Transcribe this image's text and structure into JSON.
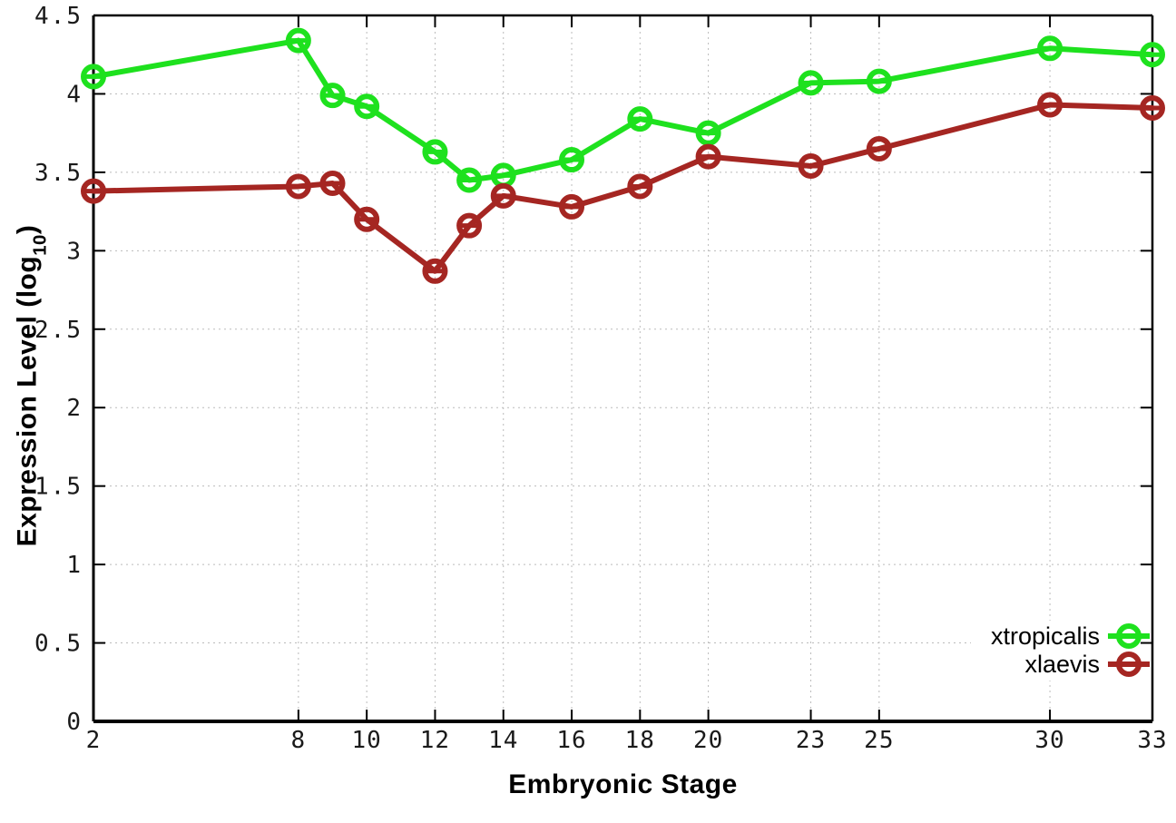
{
  "chart_data": {
    "type": "line",
    "title": "",
    "xlabel": "Embryonic Stage",
    "ylabel": "Expression Level (log10)",
    "ylabel_parts": {
      "pre": "Expression Level (log",
      "sub": "10",
      "post": ")"
    },
    "x": [
      2,
      8,
      9,
      10,
      12,
      13,
      14,
      16,
      18,
      20,
      23,
      25,
      30,
      33
    ],
    "xticks": [
      2,
      8,
      10,
      12,
      14,
      16,
      18,
      20,
      23,
      25,
      30,
      33
    ],
    "xtick_labels": [
      "2",
      "8",
      "10",
      "12",
      "14",
      "16",
      "18",
      "20",
      "23",
      "25",
      "30",
      "33"
    ],
    "yticks": [
      0,
      0.5,
      1,
      1.5,
      2,
      2.5,
      3,
      3.5,
      4,
      4.5
    ],
    "ytick_labels": [
      "0",
      "0.5",
      "1",
      "1.5",
      "2",
      "2.5",
      "3",
      "3.5",
      "4",
      "4.5"
    ],
    "xlim": [
      2,
      33
    ],
    "ylim": [
      0,
      4.5
    ],
    "grid": true,
    "legend_position": "bottom-right",
    "series": [
      {
        "name": "xtropicalis",
        "color": "#1ee11e",
        "values": [
          4.11,
          4.34,
          3.99,
          3.92,
          3.63,
          3.45,
          3.48,
          3.58,
          3.84,
          3.75,
          4.07,
          4.08,
          4.29,
          4.25
        ]
      },
      {
        "name": "xlaevis",
        "color": "#a52622",
        "values": [
          3.38,
          3.41,
          3.43,
          3.2,
          2.87,
          3.16,
          3.35,
          3.28,
          3.41,
          3.6,
          3.54,
          3.65,
          3.93,
          3.91
        ]
      }
    ]
  },
  "style_colors": {
    "grid": "#bbbbbb",
    "axis": "#000000",
    "tick_text": "#1a1a1a",
    "background": "#ffffff"
  }
}
